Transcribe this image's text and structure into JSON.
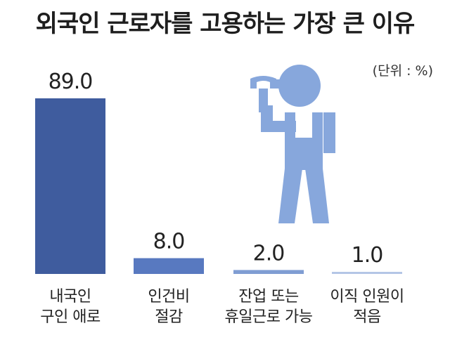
{
  "chart_data": {
    "type": "bar",
    "title": "외국인 근로자를 고용하는 가장 큰 이유",
    "unit": "(단위 : %)",
    "categories": [
      [
        "내국인",
        "구인 애로"
      ],
      [
        "인건비",
        "절감"
      ],
      [
        "잔업 또는",
        "휴일근로 가능"
      ],
      [
        "이직 인원이",
        "적음"
      ]
    ],
    "values": [
      89.0,
      8.0,
      2.0,
      1.0
    ],
    "value_labels": [
      "89.0",
      "8.0",
      "2.0",
      "1.0"
    ],
    "ylim": [
      0,
      89
    ],
    "colors": [
      "#3f5c9e",
      "#5879c0",
      "#7f9dd3",
      "#b4c6e6"
    ],
    "icon": "worker-with-wrench-icon",
    "icon_color": "#87a7dc"
  }
}
